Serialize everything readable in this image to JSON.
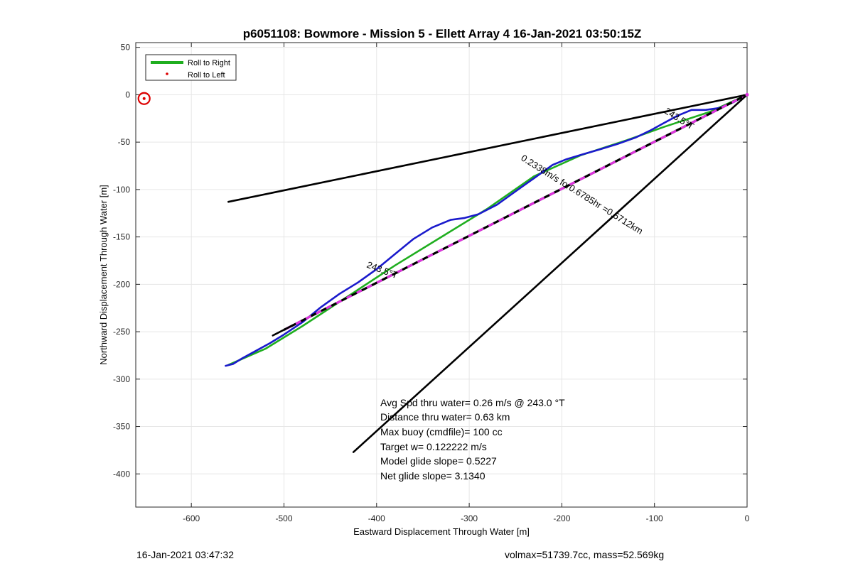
{
  "chart_data": {
    "type": "line",
    "title": "p6051108: Bowmore - Mission 5 - Ellett Array 4 16-Jan-2021 03:50:15Z",
    "xlabel": "Eastward Displacement Through Water [m]",
    "ylabel": "Northward Displacement Through Water [m]",
    "xlim": [
      -660,
      0
    ],
    "ylim": [
      -435,
      55
    ],
    "xticks": [
      -600,
      -500,
      -400,
      -300,
      -200,
      -100,
      0
    ],
    "yticks": [
      50,
      0,
      -50,
      -100,
      -150,
      -200,
      -250,
      -300,
      -350,
      -400
    ],
    "grid": true,
    "legend": {
      "location": "top-left",
      "entries": [
        {
          "label": "Roll to Right",
          "color": "#1fae1f",
          "marker": "line"
        },
        {
          "label": "Roll to Left",
          "color": "#dd0000",
          "marker": "dot"
        }
      ]
    },
    "series": [
      {
        "name": "Roll to Right",
        "color": "#1fae1f",
        "x": [
          0,
          -40,
          -90,
          -130,
          -180,
          -230,
          -280,
          -330,
          -380,
          -430,
          -480,
          -520,
          -560
        ],
        "y": [
          0,
          -18,
          -34,
          -48,
          -64,
          -86,
          -120,
          -150,
          -180,
          -212,
          -244,
          -268,
          -285
        ]
      },
      {
        "name": "track",
        "color": "#1a1acc",
        "x": [
          0,
          -15,
          -30,
          -45,
          -60,
          -75,
          -90,
          -105,
          -120,
          -140,
          -160,
          -178,
          -195,
          -210,
          -230,
          -250,
          -270,
          -290,
          -305,
          -320,
          -340,
          -360,
          -380,
          -400,
          -420,
          -440,
          -460,
          -480,
          -500,
          -515,
          -530,
          -545,
          -555,
          -563
        ],
        "y": [
          0,
          -8,
          -14,
          -16,
          -16,
          -22,
          -30,
          -38,
          -45,
          -52,
          -58,
          -63,
          -68,
          -74,
          -88,
          -102,
          -116,
          -126,
          -130,
          -132,
          -140,
          -152,
          -168,
          -184,
          -198,
          -210,
          -224,
          -240,
          -253,
          -262,
          -270,
          -278,
          -284,
          -286
        ]
      },
      {
        "name": "projected track",
        "color": "#dd33dd",
        "style": "black-magenta-dash",
        "x": [
          0,
          -500
        ],
        "y": [
          0,
          -248
        ]
      },
      {
        "name": "heading-line-upper",
        "color": "#000000",
        "x": [
          0,
          -560
        ],
        "y": [
          0,
          -113
        ]
      },
      {
        "name": "heading-line-lower",
        "color": "#000000",
        "x": [
          0,
          -425
        ],
        "y": [
          0,
          -377
        ]
      },
      {
        "name": "black-dash-extension",
        "color": "#000000",
        "x": [
          -490,
          -512
        ],
        "y": [
          -243,
          -254
        ]
      }
    ],
    "markers": [
      {
        "name": "start-circle",
        "x": -651,
        "y": -4,
        "color": "#dd0000",
        "shape": "circle"
      }
    ],
    "annotations": [
      {
        "text": "243.5°T",
        "x": -395,
        "y": -188,
        "rotation": 21
      },
      {
        "text": "243.5°T",
        "x": -75,
        "y": -28,
        "rotation": 32
      },
      {
        "text": "0.2338m/s for0.6785hr =0.5712km",
        "x": -180,
        "y": -108,
        "rotation": 32
      }
    ],
    "stats": [
      "Avg Spd thru water=  0.26 m/s @ 243.0 °T",
      "Distance thru water=  0.63 km",
      "Max buoy (cmdfile)= 100 cc",
      "Target w= 0.122222 m/s",
      "Model glide slope= 0.5227",
      "Net glide slope= 3.1340"
    ]
  },
  "footer": {
    "left": "16-Jan-2021 03:47:32",
    "right": "volmax=51739.7cc, mass=52.569kg"
  }
}
